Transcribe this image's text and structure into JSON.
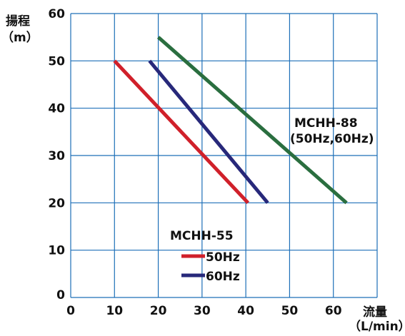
{
  "chart_data": {
    "type": "line",
    "ylabel_line1": "揚程",
    "ylabel_line2": "（m）",
    "xlabel_line1": "流量",
    "xlabel_line2": "（L/min）",
    "xlim": [
      0,
      70
    ],
    "ylim": [
      0,
      60
    ],
    "xticks": [
      "0",
      "10",
      "20",
      "30",
      "40",
      "50",
      "60"
    ],
    "yticks": [
      "0",
      "10",
      "20",
      "30",
      "40",
      "50",
      "60"
    ],
    "grid": true,
    "series": [
      {
        "name": "50Hz",
        "color": "#d0202a",
        "points": [
          [
            10,
            50
          ],
          [
            40.5,
            20
          ]
        ]
      },
      {
        "name": "60Hz",
        "color": "#27287a",
        "points": [
          [
            18,
            50
          ],
          [
            45,
            20
          ]
        ]
      },
      {
        "name": "MCHH-88 (50Hz,60Hz)",
        "color": "#2a6e3f",
        "points": [
          [
            20,
            55
          ],
          [
            63,
            20
          ]
        ]
      }
    ],
    "annotations": {
      "mchh88_line1": "MCHH-88",
      "mchh88_line2": "(50Hz,60Hz)",
      "mchh55_title": "MCHH-55"
    },
    "legend": {
      "placement": "bottom-center",
      "items": [
        {
          "label": "50Hz",
          "color": "#d0202a"
        },
        {
          "label": "60Hz",
          "color": "#27287a"
        }
      ]
    }
  }
}
